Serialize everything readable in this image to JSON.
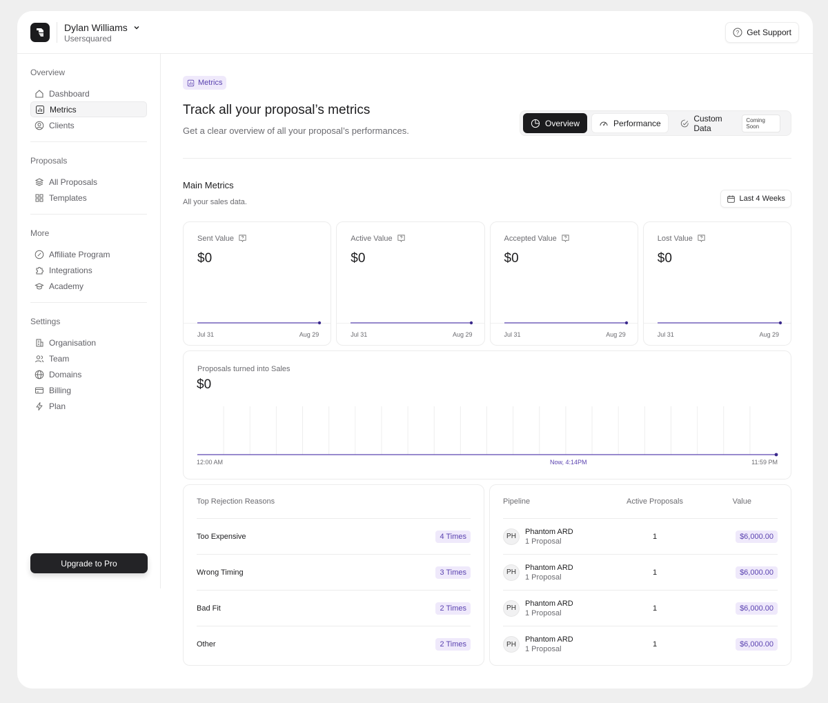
{
  "user": {
    "name": "Dylan Williams",
    "org": "Usersquared"
  },
  "header": {
    "support_label": "Get Support"
  },
  "sidebar": {
    "groups": [
      {
        "title": "Overview",
        "items": [
          "Dashboard",
          "Metrics",
          "Clients"
        ]
      },
      {
        "title": "Proposals",
        "items": [
          "All Proposals",
          "Templates"
        ]
      },
      {
        "title": "More",
        "items": [
          "Affiliate Program",
          "Integrations",
          "Academy"
        ]
      },
      {
        "title": "Settings",
        "items": [
          "Organisation",
          "Team",
          "Domains",
          "Billing",
          "Plan"
        ]
      }
    ],
    "active_item": "Metrics",
    "upgrade_label": "Upgrade to Pro"
  },
  "page": {
    "badge": "Metrics",
    "title": "Track all your proposal’s metrics",
    "subtitle": "Get a clear overview of all your proposal’s performances.",
    "tabs": {
      "overview": "Overview",
      "performance": "Performance",
      "custom": "Custom Data",
      "coming_soon": "Coming Soon"
    }
  },
  "main_metrics": {
    "title": "Main Metrics",
    "subtitle": "All your sales data.",
    "range": "Last 4 Weeks",
    "cards": [
      {
        "label": "Sent Value",
        "value": "$0",
        "start": "Jul 31",
        "end": "Aug 29"
      },
      {
        "label": "Active Value",
        "value": "$0",
        "start": "Jul 31",
        "end": "Aug 29"
      },
      {
        "label": "Accepted Value",
        "value": "$0",
        "start": "Jul 31",
        "end": "Aug 29"
      },
      {
        "label": "Lost Value",
        "value": "$0",
        "start": "Jul 31",
        "end": "Aug 29"
      }
    ]
  },
  "sales": {
    "label": "Proposals turned into Sales",
    "value": "$0",
    "t_start": "12:00 AM",
    "t_now": "Now, 4:14PM",
    "t_end": "11:59 PM"
  },
  "rejections": {
    "title": "Top Rejection Reasons",
    "rows": [
      {
        "reason": "Too Expensive",
        "count": "4 Times"
      },
      {
        "reason": "Wrong Timing",
        "count": "3 Times"
      },
      {
        "reason": "Bad Fit",
        "count": "2 Times"
      },
      {
        "reason": "Other",
        "count": "2 Times"
      }
    ]
  },
  "pipeline": {
    "headers": {
      "pipeline": "Pipeline",
      "active": "Active Proposals",
      "value": "Value"
    },
    "rows": [
      {
        "initials": "PH",
        "name": "Phantom ARD",
        "sub": "1 Proposal",
        "active": "1",
        "value": "$6,000.00"
      },
      {
        "initials": "PH",
        "name": "Phantom ARD",
        "sub": "1 Proposal",
        "active": "1",
        "value": "$6,000.00"
      },
      {
        "initials": "PH",
        "name": "Phantom ARD",
        "sub": "1 Proposal",
        "active": "1",
        "value": "$6,000.00"
      },
      {
        "initials": "PH",
        "name": "Phantom ARD",
        "sub": "1 Proposal",
        "active": "1",
        "value": "$6,000.00"
      }
    ]
  },
  "colors": {
    "accent": "#5b43b0",
    "accent_bg": "#efe9fb",
    "dark": "#1b1b1d"
  }
}
